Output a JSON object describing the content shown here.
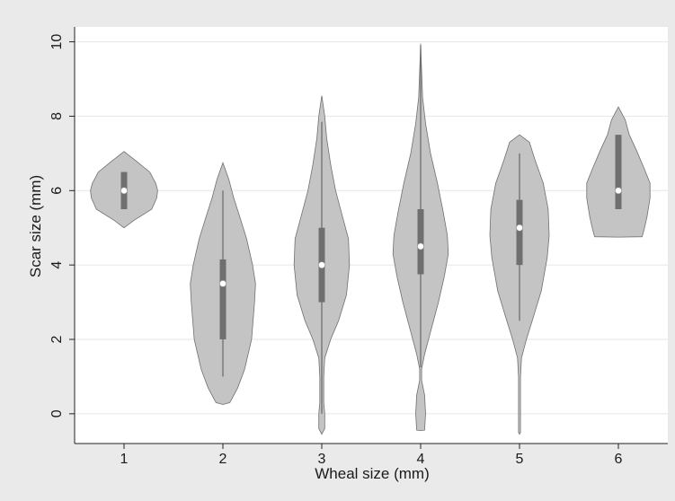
{
  "chart_data": {
    "type": "violin",
    "title": "",
    "xlabel": "Wheal size (mm)",
    "ylabel": "Scar size (mm)",
    "xlim": [
      0.5,
      6.5
    ],
    "ylim": [
      -0.8,
      10.4
    ],
    "x_ticks": [
      1,
      2,
      3,
      4,
      5,
      6
    ],
    "y_ticks": [
      0,
      2,
      4,
      6,
      8,
      10
    ],
    "grid": "horizontal",
    "legend": "none",
    "colors": {
      "background": "#eaeaea",
      "plot_area": "#ffffff",
      "grid": "#e6e6e6",
      "violin_fill": "#c4c4c4",
      "violin_outline": "#707070",
      "box": "#6f6f6f",
      "whisker": "#6f6f6f",
      "median_marker": "#ffffff"
    },
    "groups": [
      {
        "label": "1",
        "median": 6.0,
        "q1": 5.5,
        "q3": 6.5,
        "whisker_low": 5.5,
        "whisker_high": 6.5,
        "density": [
          [
            5.0,
            0.0
          ],
          [
            5.2,
            0.1
          ],
          [
            5.5,
            0.28
          ],
          [
            5.8,
            0.33
          ],
          [
            6.0,
            0.34
          ],
          [
            6.2,
            0.32
          ],
          [
            6.5,
            0.26
          ],
          [
            6.8,
            0.12
          ],
          [
            7.05,
            0.0
          ]
        ]
      },
      {
        "label": "2",
        "median": 3.5,
        "q1": 2.0,
        "q3": 4.15,
        "whisker_low": 1.0,
        "whisker_high": 6.0,
        "density": [
          [
            0.25,
            0.0
          ],
          [
            0.3,
            0.07
          ],
          [
            0.7,
            0.15
          ],
          [
            1.2,
            0.22
          ],
          [
            2.0,
            0.29
          ],
          [
            3.0,
            0.32
          ],
          [
            3.5,
            0.33
          ],
          [
            4.0,
            0.3
          ],
          [
            4.7,
            0.24
          ],
          [
            5.3,
            0.17
          ],
          [
            5.8,
            0.11
          ],
          [
            6.3,
            0.06
          ],
          [
            6.75,
            0.0
          ]
        ]
      },
      {
        "label": "3",
        "median": 4.0,
        "q1": 3.0,
        "q3": 5.0,
        "whisker_low": 0.0,
        "whisker_high": 7.85,
        "density": [
          [
            -0.55,
            0.0
          ],
          [
            -0.4,
            0.03
          ],
          [
            0.0,
            0.03
          ],
          [
            0.3,
            0.02
          ],
          [
            1.0,
            0.02
          ],
          [
            1.5,
            0.03
          ],
          [
            2.0,
            0.09
          ],
          [
            2.5,
            0.17
          ],
          [
            3.2,
            0.25
          ],
          [
            4.0,
            0.28
          ],
          [
            4.7,
            0.27
          ],
          [
            5.3,
            0.21
          ],
          [
            6.0,
            0.14
          ],
          [
            6.7,
            0.09
          ],
          [
            7.4,
            0.05
          ],
          [
            8.0,
            0.03
          ],
          [
            8.55,
            0.0
          ]
        ]
      },
      {
        "label": "4",
        "median": 4.5,
        "q1": 3.75,
        "q3": 5.5,
        "whisker_low": 1.25,
        "whisker_high": 9.9,
        "density": [
          [
            -0.45,
            0.0
          ],
          [
            -0.44,
            0.04
          ],
          [
            0.0,
            0.05
          ],
          [
            0.5,
            0.04
          ],
          [
            0.9,
            0.01
          ],
          [
            1.2,
            0.01
          ],
          [
            1.6,
            0.04
          ],
          [
            2.2,
            0.1
          ],
          [
            3.0,
            0.18
          ],
          [
            3.7,
            0.24
          ],
          [
            4.3,
            0.28
          ],
          [
            4.8,
            0.27
          ],
          [
            5.4,
            0.23
          ],
          [
            6.2,
            0.17
          ],
          [
            7.0,
            0.1
          ],
          [
            7.8,
            0.05
          ],
          [
            8.5,
            0.02
          ],
          [
            9.2,
            0.01
          ],
          [
            9.95,
            0.0
          ]
        ]
      },
      {
        "label": "5",
        "median": 5.0,
        "q1": 4.0,
        "q3": 5.75,
        "whisker_low": 2.5,
        "whisker_high": 7.0,
        "density": [
          [
            -0.55,
            0.0
          ],
          [
            -0.5,
            0.01
          ],
          [
            0.7,
            0.01
          ],
          [
            1.0,
            0.01
          ],
          [
            1.5,
            0.02
          ],
          [
            2.0,
            0.07
          ],
          [
            2.6,
            0.14
          ],
          [
            3.3,
            0.22
          ],
          [
            4.2,
            0.28
          ],
          [
            4.8,
            0.3
          ],
          [
            5.5,
            0.29
          ],
          [
            6.2,
            0.24
          ],
          [
            6.8,
            0.16
          ],
          [
            7.3,
            0.1
          ],
          [
            7.5,
            0.0
          ]
        ]
      },
      {
        "label": "6",
        "median": 6.0,
        "q1": 5.5,
        "q3": 7.5,
        "whisker_low": 5.5,
        "whisker_high": 7.5,
        "density": [
          [
            4.75,
            0.0
          ],
          [
            4.76,
            0.24
          ],
          [
            4.95,
            0.26
          ],
          [
            5.3,
            0.29
          ],
          [
            5.8,
            0.32
          ],
          [
            6.2,
            0.32
          ],
          [
            6.6,
            0.26
          ],
          [
            7.1,
            0.18
          ],
          [
            7.5,
            0.11
          ],
          [
            7.9,
            0.07
          ],
          [
            8.25,
            0.0
          ]
        ]
      }
    ]
  }
}
